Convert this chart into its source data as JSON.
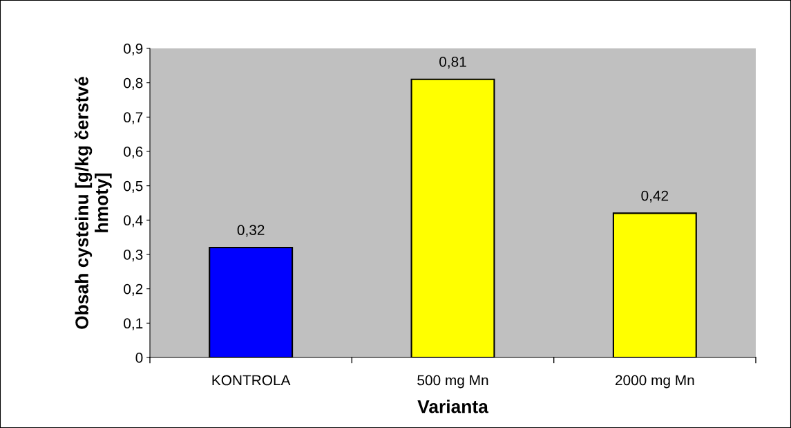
{
  "chart_data": {
    "type": "bar",
    "xlabel": "Varianta",
    "ylabel": "Obsah cysteinu [g/kg čerstvé\nhmoty]",
    "categories": [
      "KONTROLA",
      "500 mg Mn",
      "2000 mg Mn"
    ],
    "values": [
      0.32,
      0.81,
      0.42
    ],
    "colors": [
      "#0000ff",
      "#ffff00",
      "#ffff00"
    ],
    "value_labels": [
      "0,32",
      "0,81",
      "0,42"
    ],
    "ylim": [
      0,
      0.9
    ],
    "yticks": [
      0,
      {
        "value": 0.1,
        "label": "0,1"
      },
      {
        "value": 0.2,
        "label": "0,2"
      },
      {
        "value": 0.3,
        "label": "0,3"
      },
      {
        "value": 0.4,
        "label": "0,4"
      },
      {
        "value": 0.5,
        "label": "0,5"
      },
      {
        "value": 0.6,
        "label": "0,6"
      },
      {
        "value": 0.7,
        "label": "0,7"
      },
      {
        "value": 0.8,
        "label": "0,8"
      },
      {
        "value": 0.9,
        "label": "0,9"
      }
    ],
    "grid": false,
    "legend": false
  }
}
